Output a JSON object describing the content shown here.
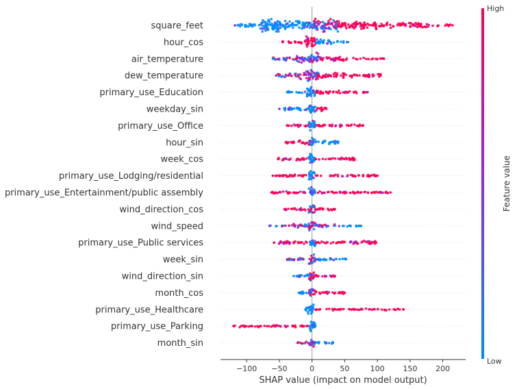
{
  "chart_data": {
    "type": "scatter",
    "subtype": "shap_beeswarm_summary",
    "title": "",
    "xlabel": "SHAP value (impact on model output)",
    "xlim": [
      -140,
      235
    ],
    "xticks": [
      -100,
      -50,
      0,
      50,
      100,
      150,
      200
    ],
    "xtick_labels": [
      "−100",
      "−50",
      "0",
      "50",
      "100",
      "150",
      "200"
    ],
    "colorbar": {
      "label": "Feature value",
      "high_label": "High",
      "low_label": "Low",
      "low_color": "#008bfb",
      "mid_color": "#8a2be2",
      "high_color": "#ff0051"
    },
    "features": [
      {
        "name": "square_feet",
        "min": -118,
        "max": 215,
        "spread": 12,
        "segments": [
          {
            "from": -118,
            "to": -80,
            "color": "low",
            "width": 0.25
          },
          {
            "from": -80,
            "to": -40,
            "color": "low",
            "width": 0.9
          },
          {
            "from": -40,
            "to": -5,
            "color": "low",
            "width": 0.55
          },
          {
            "from": -5,
            "to": 40,
            "color": "mixed",
            "width": 0.85
          },
          {
            "from": 40,
            "to": 100,
            "color": "high",
            "width": 0.55
          },
          {
            "from": 100,
            "to": 180,
            "color": "high",
            "width": 0.35
          },
          {
            "from": 180,
            "to": 215,
            "color": "high",
            "width": 0.15
          }
        ]
      },
      {
        "name": "hour_cos",
        "min": -45,
        "max": 55,
        "spread": 9,
        "segments": [
          {
            "from": -45,
            "to": -10,
            "color": "high",
            "width": 0.25
          },
          {
            "from": -10,
            "to": 5,
            "color": "high",
            "width": 0.95
          },
          {
            "from": 5,
            "to": 30,
            "color": "low",
            "width": 0.45
          },
          {
            "from": 30,
            "to": 55,
            "color": "low",
            "width": 0.15
          }
        ]
      },
      {
        "name": "air_temperature",
        "min": -60,
        "max": 110,
        "spread": 10,
        "segments": [
          {
            "from": -60,
            "to": -25,
            "color": "mixlow",
            "width": 0.3
          },
          {
            "from": -25,
            "to": -5,
            "color": "mixed",
            "width": 0.6
          },
          {
            "from": -5,
            "to": 10,
            "color": "mixed",
            "width": 0.95
          },
          {
            "from": 10,
            "to": 60,
            "color": "high",
            "width": 0.35
          },
          {
            "from": 60,
            "to": 110,
            "color": "high",
            "width": 0.15
          }
        ]
      },
      {
        "name": "dew_temperature",
        "min": -55,
        "max": 105,
        "spread": 10,
        "segments": [
          {
            "from": -55,
            "to": -20,
            "color": "mixed",
            "width": 0.3
          },
          {
            "from": -20,
            "to": 10,
            "color": "mixed",
            "width": 0.85
          },
          {
            "from": 10,
            "to": 50,
            "color": "high",
            "width": 0.4
          },
          {
            "from": 50,
            "to": 105,
            "color": "high",
            "width": 0.3
          }
        ]
      },
      {
        "name": "primary_use_Education",
        "min": -38,
        "max": 85,
        "spread": 9,
        "segments": [
          {
            "from": -38,
            "to": -10,
            "color": "low",
            "width": 0.2
          },
          {
            "from": -10,
            "to": 5,
            "color": "low",
            "width": 0.95
          },
          {
            "from": 5,
            "to": 45,
            "color": "high",
            "width": 0.3
          },
          {
            "from": 45,
            "to": 85,
            "color": "high",
            "width": 0.2
          }
        ]
      },
      {
        "name": "weekday_sin",
        "min": -50,
        "max": 22,
        "spread": 9,
        "segments": [
          {
            "from": -50,
            "to": -5,
            "color": "low",
            "width": 0.3
          },
          {
            "from": -5,
            "to": 5,
            "color": "low",
            "width": 0.9
          },
          {
            "from": 5,
            "to": 22,
            "color": "high",
            "width": 0.35
          }
        ]
      },
      {
        "name": "primary_use_Office",
        "min": -38,
        "max": 78,
        "spread": 8,
        "segments": [
          {
            "from": -38,
            "to": -5,
            "color": "high",
            "width": 0.25
          },
          {
            "from": -5,
            "to": 5,
            "color": "low",
            "width": 0.95
          },
          {
            "from": 5,
            "to": 78,
            "color": "high",
            "width": 0.25
          }
        ]
      },
      {
        "name": "hour_sin",
        "min": -40,
        "max": 40,
        "spread": 9,
        "segments": [
          {
            "from": -40,
            "to": -5,
            "color": "high",
            "width": 0.3
          },
          {
            "from": -5,
            "to": 5,
            "color": "mixed",
            "width": 0.95
          },
          {
            "from": 5,
            "to": 40,
            "color": "low",
            "width": 0.3
          }
        ]
      },
      {
        "name": "week_cos",
        "min": -52,
        "max": 65,
        "spread": 9,
        "segments": [
          {
            "from": -52,
            "to": -5,
            "color": "high",
            "width": 0.25
          },
          {
            "from": -5,
            "to": 5,
            "color": "low",
            "width": 0.95
          },
          {
            "from": 5,
            "to": 65,
            "color": "high",
            "width": 0.25
          }
        ]
      },
      {
        "name": "primary_use_Lodging/residential",
        "min": -60,
        "max": 100,
        "spread": 8,
        "segments": [
          {
            "from": -60,
            "to": -5,
            "color": "high",
            "width": 0.25
          },
          {
            "from": -5,
            "to": 5,
            "color": "low",
            "width": 0.95
          },
          {
            "from": 5,
            "to": 100,
            "color": "high",
            "width": 0.22
          }
        ]
      },
      {
        "name": "primary_use_Entertainment/public assembly",
        "min": -62,
        "max": 120,
        "spread": 8,
        "segments": [
          {
            "from": -62,
            "to": -5,
            "color": "high",
            "width": 0.25
          },
          {
            "from": -5,
            "to": 5,
            "color": "low",
            "width": 0.95
          },
          {
            "from": 5,
            "to": 120,
            "color": "high",
            "width": 0.22
          }
        ]
      },
      {
        "name": "wind_direction_cos",
        "min": -42,
        "max": 35,
        "spread": 8,
        "segments": [
          {
            "from": -42,
            "to": -5,
            "color": "high",
            "width": 0.25
          },
          {
            "from": -5,
            "to": 5,
            "color": "mixed",
            "width": 0.95
          },
          {
            "from": 5,
            "to": 35,
            "color": "high",
            "width": 0.25
          }
        ]
      },
      {
        "name": "wind_speed",
        "min": -65,
        "max": 75,
        "spread": 8,
        "segments": [
          {
            "from": -65,
            "to": -30,
            "color": "mixed",
            "width": 0.15
          },
          {
            "from": -30,
            "to": -5,
            "color": "mixed",
            "width": 0.35
          },
          {
            "from": -5,
            "to": 5,
            "color": "mixed",
            "width": 0.95
          },
          {
            "from": 5,
            "to": 35,
            "color": "mixed",
            "width": 0.35
          },
          {
            "from": 35,
            "to": 75,
            "color": "low",
            "width": 0.15
          }
        ]
      },
      {
        "name": "primary_use_Public services",
        "min": -58,
        "max": 98,
        "spread": 8,
        "segments": [
          {
            "from": -58,
            "to": -5,
            "color": "high",
            "width": 0.28
          },
          {
            "from": -5,
            "to": 5,
            "color": "low",
            "width": 0.95
          },
          {
            "from": 5,
            "to": 52,
            "color": "high",
            "width": 0.22
          },
          {
            "from": 58,
            "to": 98,
            "color": "high",
            "width": 0.35
          }
        ]
      },
      {
        "name": "week_sin",
        "min": -38,
        "max": 52,
        "spread": 8,
        "segments": [
          {
            "from": -38,
            "to": -5,
            "color": "mixed",
            "width": 0.25
          },
          {
            "from": -5,
            "to": 5,
            "color": "mixed",
            "width": 0.95
          },
          {
            "from": 5,
            "to": 52,
            "color": "low",
            "width": 0.25
          }
        ]
      },
      {
        "name": "wind_direction_sin",
        "min": -28,
        "max": 35,
        "spread": 8,
        "segments": [
          {
            "from": -28,
            "to": -5,
            "color": "low",
            "width": 0.3
          },
          {
            "from": -5,
            "to": 5,
            "color": "mixed",
            "width": 0.95
          },
          {
            "from": 5,
            "to": 35,
            "color": "high",
            "width": 0.25
          }
        ]
      },
      {
        "name": "month_cos",
        "min": -20,
        "max": 50,
        "spread": 8,
        "segments": [
          {
            "from": -20,
            "to": -5,
            "color": "low",
            "width": 0.3
          },
          {
            "from": -5,
            "to": 5,
            "color": "mixed",
            "width": 0.95
          },
          {
            "from": 5,
            "to": 50,
            "color": "high",
            "width": 0.25
          }
        ]
      },
      {
        "name": "primary_use_Healthcare",
        "min": -10,
        "max": 140,
        "spread": 8,
        "segments": [
          {
            "from": -10,
            "to": 3,
            "color": "low",
            "width": 0.95
          },
          {
            "from": 3,
            "to": 140,
            "color": "high",
            "width": 0.18
          }
        ]
      },
      {
        "name": "primary_use_Parking",
        "min": -120,
        "max": 5,
        "spread": 8,
        "segments": [
          {
            "from": -120,
            "to": -5,
            "color": "high",
            "width": 0.22
          },
          {
            "from": -5,
            "to": 5,
            "color": "low",
            "width": 0.95
          }
        ]
      },
      {
        "name": "month_sin",
        "min": -22,
        "max": 32,
        "spread": 8,
        "segments": [
          {
            "from": -22,
            "to": -5,
            "color": "mixed",
            "width": 0.25
          },
          {
            "from": -5,
            "to": 5,
            "color": "mixed",
            "width": 0.95
          },
          {
            "from": 5,
            "to": 32,
            "color": "low",
            "width": 0.25
          }
        ]
      }
    ]
  }
}
